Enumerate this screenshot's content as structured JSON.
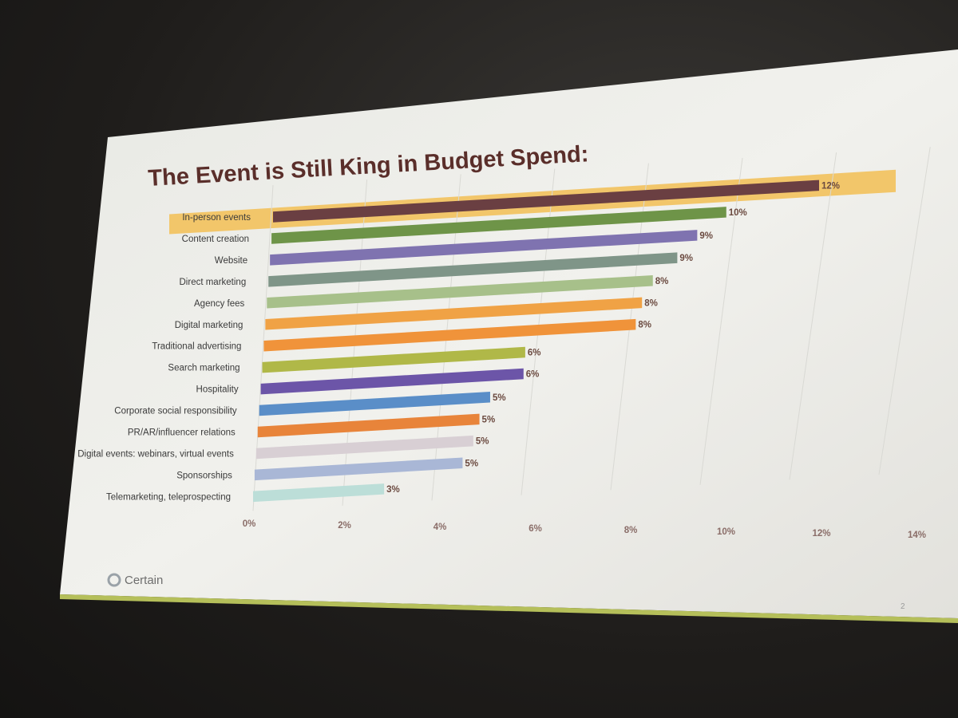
{
  "slide": {
    "title": "The Event is Still King in Budget Spend:",
    "brand": "Certain",
    "page_number": "2"
  },
  "chart_data": {
    "type": "bar",
    "orientation": "horizontal",
    "title": "The Event is Still King in Budget Spend:",
    "xlabel": "",
    "ylabel": "",
    "xlim": [
      0,
      14
    ],
    "x_ticks": [
      "0%",
      "2%",
      "4%",
      "6%",
      "8%",
      "10%",
      "12%",
      "14%"
    ],
    "grid": true,
    "highlighted_category": "In-person events",
    "highlight_color": "#f2c66a",
    "categories": [
      "In-person events",
      "Content creation",
      "Website",
      "Direct marketing",
      "Agency fees",
      "Digital marketing",
      "Traditional advertising",
      "Search marketing",
      "Hospitality",
      "Corporate social responsibility",
      "PR/AR/influencer relations",
      "Digital events: webinars, virtual events",
      "Sponsorships",
      "Telemarketing, teleprospecting"
    ],
    "values": [
      12.0,
      10.0,
      9.4,
      9.0,
      8.5,
      8.3,
      8.2,
      5.8,
      5.8,
      5.1,
      4.9,
      4.8,
      4.6,
      2.9
    ],
    "value_labels": [
      "12%",
      "10%",
      "9%",
      "9%",
      "8%",
      "8%",
      "8%",
      "6%",
      "6%",
      "5%",
      "5%",
      "5%",
      "5%",
      "3%"
    ],
    "colors": [
      "#6a3f42",
      "#6e9448",
      "#7f73b0",
      "#7f9588",
      "#a7c08a",
      "#f0a245",
      "#f0933a",
      "#b0b848",
      "#6c55a8",
      "#5a8ec8",
      "#e8843a",
      "#d8cfd4",
      "#a9b7d6",
      "#bcded8"
    ]
  }
}
